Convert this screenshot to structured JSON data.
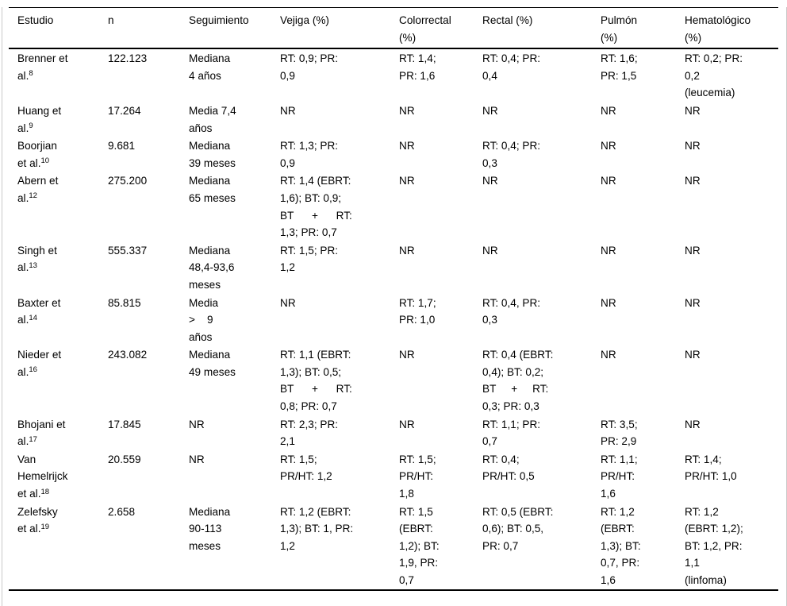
{
  "table": {
    "columns": [
      "Estudio",
      "n",
      "Seguimiento",
      "Vejiga (%)",
      "Colorrectal\n(%)",
      "Rectal (%)",
      "Pulmón\n(%)",
      "Hematológico\n(%)"
    ],
    "rows": [
      {
        "study": {
          "text": "Brenner et\nal.",
          "ref": "8"
        },
        "n": "122.123",
        "seguimiento": "Mediana\n4 años",
        "vejiga": "RT: 0,9; PR:\n0,9",
        "colorrectal": "RT: 1,4;\nPR: 1,6",
        "rectal": "RT: 0,4; PR:\n0,4",
        "pulmon": "RT: 1,6;\nPR: 1,5",
        "hematologico": "RT: 0,2; PR:\n0,2\n(leucemia)"
      },
      {
        "study": {
          "text": "Huang et\nal.",
          "ref": "9"
        },
        "n": "17.264",
        "seguimiento": "Media 7,4\naños",
        "vejiga": "NR",
        "colorrectal": "NR",
        "rectal": "NR",
        "pulmon": "NR",
        "hematologico": "NR"
      },
      {
        "study": {
          "text": "Boorjian\net al.",
          "ref": "10"
        },
        "n": "9.681",
        "seguimiento": "Mediana\n39 meses",
        "vejiga": "RT: 1,3; PR:\n0,9",
        "colorrectal": "NR",
        "rectal": "RT: 0,4; PR:\n0,3",
        "pulmon": "NR",
        "hematologico": "NR"
      },
      {
        "study": {
          "text": "Abern et\nal.",
          "ref": "12"
        },
        "n": "275.200",
        "seguimiento": "Mediana\n65 meses",
        "vejiga": "RT: 1,4 (EBRT:\n1,6); BT: 0,9;\nBT      +      RT:\n1,3; PR: 0,7",
        "colorrectal": "NR",
        "rectal": "NR",
        "pulmon": "NR",
        "hematologico": "NR"
      },
      {
        "study": {
          "text": "Singh et\nal.",
          "ref": "13"
        },
        "n": "555.337",
        "seguimiento": "Mediana\n48,4-93,6\nmeses",
        "vejiga": "RT: 1,5; PR:\n1,2",
        "colorrectal": "NR",
        "rectal": "NR",
        "pulmon": "NR",
        "hematologico": "NR"
      },
      {
        "study": {
          "text": "Baxter et\nal.",
          "ref": "14"
        },
        "n": "85.815",
        "seguimiento": "Media\n>    9\naños",
        "vejiga": "NR",
        "colorrectal": "RT: 1,7;\nPR: 1,0",
        "rectal": "RT: 0,4, PR:\n0,3",
        "pulmon": "NR",
        "hematologico": "NR"
      },
      {
        "study": {
          "text": "Nieder et\nal.",
          "ref": "16"
        },
        "n": "243.082",
        "seguimiento": "Mediana\n49 meses",
        "vejiga": "RT: 1,1 (EBRT:\n1,3); BT: 0,5;\nBT      +      RT:\n0,8; PR: 0,7",
        "colorrectal": "NR",
        "rectal": "RT: 0,4 (EBRT:\n0,4); BT: 0,2;\nBT     +     RT:\n0,3; PR: 0,3",
        "pulmon": "NR",
        "hematologico": "NR"
      },
      {
        "study": {
          "text": "Bhojani et\nal.",
          "ref": "17"
        },
        "n": "17.845",
        "seguimiento": "NR",
        "vejiga": "RT: 2,3; PR:\n2,1",
        "colorrectal": "NR",
        "rectal": "RT: 1,1; PR:\n0,7",
        "pulmon": "RT: 3,5;\nPR: 2,9",
        "hematologico": "NR"
      },
      {
        "study": {
          "text": "Van\nHemelrijck\net al.",
          "ref": "18"
        },
        "n": "20.559",
        "seguimiento": "NR",
        "vejiga": "RT: 1,5;\nPR/HT: 1,2",
        "colorrectal": "RT: 1,5;\nPR/HT:\n1,8",
        "rectal": "RT: 0,4;\nPR/HT: 0,5",
        "pulmon": "RT: 1,1;\nPR/HT:\n1,6",
        "hematologico": "RT: 1,4;\nPR/HT: 1,0"
      },
      {
        "study": {
          "text": "Zelefsky\net al.",
          "ref": "19"
        },
        "n": "2.658",
        "seguimiento": "Mediana\n90-113\nmeses",
        "vejiga": "RT: 1,2 (EBRT:\n1,3); BT: 1, PR:\n1,2",
        "colorrectal": "RT: 1,5\n(EBRT:\n1,2); BT:\n1,9, PR:\n0,7",
        "rectal": "RT: 0,5 (EBRT:\n0,6); BT: 0,5,\nPR: 0,7",
        "pulmon": "RT: 1,2\n(EBRT:\n1,3); BT:\n0,7, PR:\n1,6",
        "hematologico": "RT: 1,2\n(EBRT: 1,2);\nBT: 1,2, PR:\n1,1\n(linfoma)"
      }
    ]
  }
}
